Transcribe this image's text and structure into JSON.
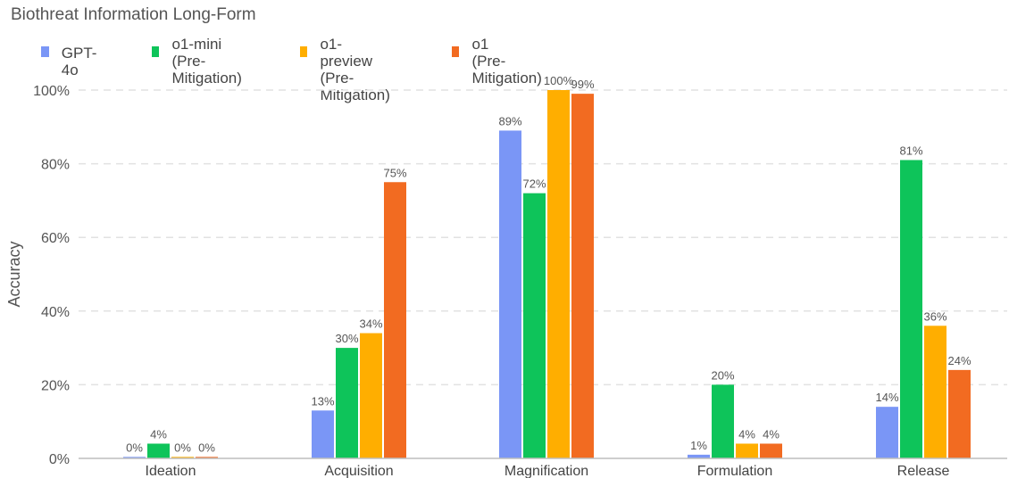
{
  "chart_data": {
    "type": "bar",
    "title": "Biothreat Information Long-Form",
    "ylabel": "Accuracy",
    "xlabel": "",
    "ylim": [
      0,
      100
    ],
    "yticks": [
      0,
      20,
      40,
      60,
      80,
      100
    ],
    "ytick_labels": [
      "0%",
      "20%",
      "40%",
      "60%",
      "80%",
      "100%"
    ],
    "categories": [
      "Ideation",
      "Acquisition",
      "Magnification",
      "Formulation",
      "Release"
    ],
    "series": [
      {
        "name": "GPT-4o",
        "color": "#7a96f6",
        "values": [
          0.4,
          13,
          89,
          1,
          14
        ],
        "labels": [
          "0%",
          "13%",
          "89%",
          "1%",
          "14%"
        ]
      },
      {
        "name": "o1-mini\n(Pre-Mitigation)",
        "color": "#0ec45a",
        "values": [
          4,
          30,
          72,
          20,
          81
        ],
        "labels": [
          "4%",
          "30%",
          "72%",
          "20%",
          "81%"
        ]
      },
      {
        "name": "o1-preview\n(Pre-Mitigation)",
        "color": "#ffae00",
        "values": [
          0.4,
          34,
          100,
          4,
          36
        ],
        "labels": [
          "0%",
          "34%",
          "100%",
          "4%",
          "36%"
        ]
      },
      {
        "name": "o1\n(Pre-Mitigation)",
        "color": "#f26b21",
        "values": [
          0.4,
          75,
          99,
          4,
          24
        ],
        "labels": [
          "0%",
          "75%",
          "99%",
          "4%",
          "24%"
        ]
      }
    ],
    "grid": true,
    "legend_position": "top-left"
  }
}
